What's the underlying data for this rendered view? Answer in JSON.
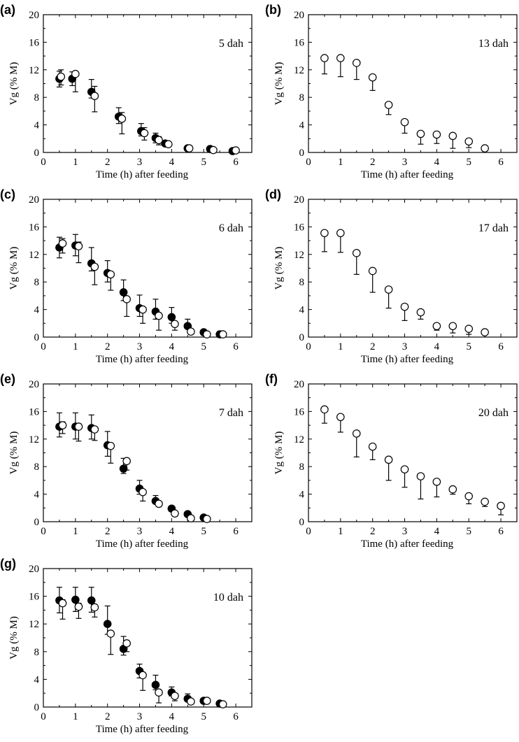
{
  "figure": {
    "xlabel": "Time (h) after feeding",
    "ylabel": "Vg (% M)"
  },
  "chart_data": [
    {
      "type": "scatter",
      "panel": "(a)",
      "annotation": "5 dah",
      "xlim": [
        0,
        6.5
      ],
      "ylim": [
        0,
        20
      ],
      "xticks": [
        "0",
        "1",
        "2",
        "3",
        "4",
        "5",
        "6"
      ],
      "yticks": [
        "0",
        "4",
        "8",
        "12",
        "16",
        "20"
      ],
      "series": [
        {
          "marker": "filled",
          "points": [
            {
              "x": 0.5,
              "y": 10.7,
              "lo": 9.5,
              "hi": 11.8
            },
            {
              "x": 0.9,
              "y": 10.7,
              "lo": 9.7,
              "hi": 11.7
            },
            {
              "x": 1.5,
              "y": 8.8,
              "lo": 7.9,
              "hi": 10.6
            },
            {
              "x": 2.35,
              "y": 5.2,
              "lo": 4.2,
              "hi": 6.5
            },
            {
              "x": 3.05,
              "y": 3.1,
              "lo": 2.4,
              "hi": 4.2
            },
            {
              "x": 3.5,
              "y": 2.1,
              "lo": 1.4,
              "hi": 2.8
            },
            {
              "x": 3.8,
              "y": 1.3,
              "lo": 1.0,
              "hi": 1.6
            },
            {
              "x": 4.5,
              "y": 0.6,
              "lo": 0.4,
              "hi": 0.8
            },
            {
              "x": 5.2,
              "y": 0.5,
              "lo": 0.3,
              "hi": 0.7
            },
            {
              "x": 5.9,
              "y": 0.2,
              "lo": 0.1,
              "hi": 0.3
            }
          ]
        },
        {
          "marker": "open",
          "points": [
            {
              "x": 0.55,
              "y": 11.0,
              "lo": 9.8,
              "hi": 12.0
            },
            {
              "x": 1.0,
              "y": 11.4,
              "lo": 8.8,
              "hi": 11.6
            },
            {
              "x": 1.6,
              "y": 8.2,
              "lo": 5.9,
              "hi": 9.6
            },
            {
              "x": 2.45,
              "y": 4.9,
              "lo": 2.7,
              "hi": 5.8
            },
            {
              "x": 3.15,
              "y": 2.8,
              "lo": 1.8,
              "hi": 3.6
            },
            {
              "x": 3.6,
              "y": 1.8,
              "lo": 1.1,
              "hi": 2.3
            },
            {
              "x": 3.9,
              "y": 1.2,
              "lo": 0.9,
              "hi": 1.5
            },
            {
              "x": 4.55,
              "y": 0.6,
              "lo": 0.4,
              "hi": 0.8
            },
            {
              "x": 5.3,
              "y": 0.35,
              "lo": 0.2,
              "hi": 0.5
            },
            {
              "x": 6.0,
              "y": 0.3,
              "lo": 0.2,
              "hi": 0.4
            }
          ]
        }
      ]
    },
    {
      "type": "scatter",
      "panel": "(b)",
      "annotation": "13 dah",
      "xlim": [
        0,
        6.5
      ],
      "ylim": [
        0,
        20
      ],
      "xticks": [
        "0",
        "1",
        "2",
        "3",
        "4",
        "5",
        "6"
      ],
      "yticks": [
        "0",
        "4",
        "8",
        "12",
        "16",
        "20"
      ],
      "series": [
        {
          "marker": "open",
          "points": [
            {
              "x": 0.5,
              "y": 13.7,
              "lo": 11.4,
              "hi": 13.7
            },
            {
              "x": 1.0,
              "y": 13.7,
              "lo": 11.0,
              "hi": 13.7
            },
            {
              "x": 1.5,
              "y": 13.0,
              "lo": 10.6,
              "hi": 13.0
            },
            {
              "x": 2.0,
              "y": 10.9,
              "lo": 9.0,
              "hi": 10.9
            },
            {
              "x": 2.5,
              "y": 6.9,
              "lo": 5.5,
              "hi": 6.9
            },
            {
              "x": 3.0,
              "y": 4.4,
              "lo": 2.8,
              "hi": 4.4
            },
            {
              "x": 3.5,
              "y": 2.7,
              "lo": 1.2,
              "hi": 2.7
            },
            {
              "x": 4.0,
              "y": 2.6,
              "lo": 1.3,
              "hi": 2.6
            },
            {
              "x": 4.5,
              "y": 2.4,
              "lo": 0.6,
              "hi": 2.4
            },
            {
              "x": 5.0,
              "y": 1.6,
              "lo": 0.7,
              "hi": 1.6
            },
            {
              "x": 5.5,
              "y": 0.6,
              "lo": 0.6,
              "hi": 0.6
            }
          ]
        }
      ]
    },
    {
      "type": "scatter",
      "panel": "(c)",
      "annotation": "6 dah",
      "xlim": [
        0,
        6.5
      ],
      "ylim": [
        0,
        20
      ],
      "xticks": [
        "0",
        "1",
        "2",
        "3",
        "4",
        "5",
        "6"
      ],
      "yticks": [
        "0",
        "4",
        "8",
        "12",
        "16",
        "20"
      ],
      "series": [
        {
          "marker": "filled",
          "points": [
            {
              "x": 0.5,
              "y": 13.0,
              "lo": 11.5,
              "hi": 14.5
            },
            {
              "x": 1.0,
              "y": 13.3,
              "lo": 11.8,
              "hi": 14.9
            },
            {
              "x": 1.5,
              "y": 10.7,
              "lo": 9.6,
              "hi": 13.0
            },
            {
              "x": 2.0,
              "y": 9.3,
              "lo": 8.0,
              "hi": 11.1
            },
            {
              "x": 2.5,
              "y": 6.5,
              "lo": 5.3,
              "hi": 8.3
            },
            {
              "x": 3.0,
              "y": 4.2,
              "lo": 3.0,
              "hi": 6.1
            },
            {
              "x": 3.5,
              "y": 3.7,
              "lo": 2.6,
              "hi": 5.5
            },
            {
              "x": 4.0,
              "y": 2.9,
              "lo": 2.0,
              "hi": 4.3
            },
            {
              "x": 4.5,
              "y": 1.6,
              "lo": 1.2,
              "hi": 2.6
            },
            {
              "x": 5.0,
              "y": 0.7,
              "lo": 0.5,
              "hi": 0.9
            },
            {
              "x": 5.5,
              "y": 0.4,
              "lo": 0.3,
              "hi": 0.5
            }
          ]
        },
        {
          "marker": "open",
          "points": [
            {
              "x": 0.6,
              "y": 13.6,
              "lo": 12.2,
              "hi": 14.3
            },
            {
              "x": 1.1,
              "y": 13.2,
              "lo": 10.8,
              "hi": 13.8
            },
            {
              "x": 1.6,
              "y": 10.2,
              "lo": 7.6,
              "hi": 10.6
            },
            {
              "x": 2.1,
              "y": 9.1,
              "lo": 6.8,
              "hi": 9.4
            },
            {
              "x": 2.6,
              "y": 5.5,
              "lo": 3.0,
              "hi": 5.8
            },
            {
              "x": 3.1,
              "y": 4.0,
              "lo": 2.0,
              "hi": 4.3
            },
            {
              "x": 3.6,
              "y": 3.1,
              "lo": 1.0,
              "hi": 3.5
            },
            {
              "x": 4.1,
              "y": 1.9,
              "lo": 1.0,
              "hi": 2.2
            },
            {
              "x": 4.6,
              "y": 0.8,
              "lo": 0.4,
              "hi": 1.2
            },
            {
              "x": 5.1,
              "y": 0.4,
              "lo": 0.3,
              "hi": 0.6
            },
            {
              "x": 5.6,
              "y": 0.4,
              "lo": 0.3,
              "hi": 0.5
            }
          ]
        }
      ]
    },
    {
      "type": "scatter",
      "panel": "(d)",
      "annotation": "17 dah",
      "xlim": [
        0,
        6.5
      ],
      "ylim": [
        0,
        20
      ],
      "xticks": [
        "0",
        "1",
        "2",
        "3",
        "4",
        "5",
        "6"
      ],
      "yticks": [
        "0",
        "4",
        "8",
        "12",
        "16",
        "20"
      ],
      "series": [
        {
          "marker": "open",
          "points": [
            {
              "x": 0.5,
              "y": 15.1,
              "lo": 12.4,
              "hi": 15.1
            },
            {
              "x": 1.0,
              "y": 15.1,
              "lo": 12.3,
              "hi": 15.1
            },
            {
              "x": 1.5,
              "y": 12.2,
              "lo": 9.1,
              "hi": 12.2
            },
            {
              "x": 2.0,
              "y": 9.6,
              "lo": 6.5,
              "hi": 9.6
            },
            {
              "x": 2.5,
              "y": 6.9,
              "lo": 4.2,
              "hi": 6.9
            },
            {
              "x": 3.0,
              "y": 4.4,
              "lo": 2.4,
              "hi": 4.4
            },
            {
              "x": 3.5,
              "y": 3.6,
              "lo": 2.6,
              "hi": 3.6
            },
            {
              "x": 4.0,
              "y": 1.6,
              "lo": 1.0,
              "hi": 1.6
            },
            {
              "x": 4.5,
              "y": 1.6,
              "lo": 0.6,
              "hi": 1.6
            },
            {
              "x": 5.0,
              "y": 1.2,
              "lo": 0.4,
              "hi": 1.2
            },
            {
              "x": 5.5,
              "y": 0.7,
              "lo": 0.5,
              "hi": 0.7
            }
          ]
        }
      ]
    },
    {
      "type": "scatter",
      "panel": "(e)",
      "annotation": "7 dah",
      "xlim": [
        0,
        6.5
      ],
      "ylim": [
        0,
        20
      ],
      "xticks": [
        "0",
        "1",
        "2",
        "3",
        "4",
        "5",
        "6"
      ],
      "yticks": [
        "0",
        "4",
        "8",
        "12",
        "16",
        "20"
      ],
      "series": [
        {
          "marker": "filled",
          "points": [
            {
              "x": 0.5,
              "y": 13.8,
              "lo": 12.3,
              "hi": 15.8
            },
            {
              "x": 1.0,
              "y": 13.8,
              "lo": 12.0,
              "hi": 15.8
            },
            {
              "x": 1.5,
              "y": 13.6,
              "lo": 12.0,
              "hi": 15.5
            },
            {
              "x": 2.0,
              "y": 11.1,
              "lo": 9.5,
              "hi": 13.1
            },
            {
              "x": 2.5,
              "y": 7.7,
              "lo": 7.0,
              "hi": 9.2
            },
            {
              "x": 3.0,
              "y": 4.8,
              "lo": 4.0,
              "hi": 6.0
            },
            {
              "x": 3.5,
              "y": 3.0,
              "lo": 2.6,
              "hi": 3.8
            },
            {
              "x": 4.0,
              "y": 1.9,
              "lo": 1.5,
              "hi": 2.2
            },
            {
              "x": 4.5,
              "y": 1.1,
              "lo": 0.8,
              "hi": 1.4
            },
            {
              "x": 5.0,
              "y": 0.6,
              "lo": 0.4,
              "hi": 0.8
            }
          ]
        },
        {
          "marker": "open",
          "points": [
            {
              "x": 0.6,
              "y": 14.0,
              "lo": 12.8,
              "hi": 14.5
            },
            {
              "x": 1.1,
              "y": 13.8,
              "lo": 11.7,
              "hi": 14.2
            },
            {
              "x": 1.6,
              "y": 13.4,
              "lo": 11.8,
              "hi": 13.8
            },
            {
              "x": 2.1,
              "y": 11.0,
              "lo": 8.5,
              "hi": 11.4
            },
            {
              "x": 2.6,
              "y": 8.8,
              "lo": 7.5,
              "hi": 9.2
            },
            {
              "x": 3.1,
              "y": 4.3,
              "lo": 3.0,
              "hi": 4.6
            },
            {
              "x": 3.6,
              "y": 2.6,
              "lo": 2.2,
              "hi": 3.0
            },
            {
              "x": 4.1,
              "y": 1.2,
              "lo": 0.8,
              "hi": 1.5
            },
            {
              "x": 4.6,
              "y": 0.5,
              "lo": 0.4,
              "hi": 0.7
            },
            {
              "x": 5.1,
              "y": 0.4,
              "lo": 0.3,
              "hi": 0.5
            }
          ]
        }
      ]
    },
    {
      "type": "scatter",
      "panel": "(f)",
      "annotation": "20 dah",
      "xlim": [
        0,
        6.5
      ],
      "ylim": [
        0,
        20
      ],
      "xticks": [
        "0",
        "1",
        "2",
        "3",
        "4",
        "5",
        "6"
      ],
      "yticks": [
        "0",
        "4",
        "8",
        "12",
        "16",
        "20"
      ],
      "series": [
        {
          "marker": "open",
          "points": [
            {
              "x": 0.5,
              "y": 16.3,
              "lo": 14.3,
              "hi": 16.3
            },
            {
              "x": 1.0,
              "y": 15.2,
              "lo": 13.0,
              "hi": 15.2
            },
            {
              "x": 1.5,
              "y": 12.8,
              "lo": 9.4,
              "hi": 12.8
            },
            {
              "x": 2.0,
              "y": 10.9,
              "lo": 9.0,
              "hi": 10.9
            },
            {
              "x": 2.5,
              "y": 9.0,
              "lo": 6.0,
              "hi": 9.0
            },
            {
              "x": 3.0,
              "y": 7.6,
              "lo": 5.0,
              "hi": 7.6
            },
            {
              "x": 3.5,
              "y": 6.6,
              "lo": 3.3,
              "hi": 6.6
            },
            {
              "x": 4.0,
              "y": 5.8,
              "lo": 3.6,
              "hi": 5.8
            },
            {
              "x": 4.5,
              "y": 4.7,
              "lo": 4.0,
              "hi": 4.7
            },
            {
              "x": 5.0,
              "y": 3.7,
              "lo": 2.6,
              "hi": 3.7
            },
            {
              "x": 5.5,
              "y": 2.9,
              "lo": 2.2,
              "hi": 2.9
            },
            {
              "x": 6.0,
              "y": 2.3,
              "lo": 1.0,
              "hi": 2.3
            }
          ]
        }
      ]
    },
    {
      "type": "scatter",
      "panel": "(g)",
      "annotation": "10 dah",
      "xlim": [
        0,
        6.5
      ],
      "ylim": [
        0,
        20
      ],
      "xticks": [
        "0",
        "1",
        "2",
        "3",
        "4",
        "5",
        "6"
      ],
      "yticks": [
        "0",
        "4",
        "8",
        "12",
        "16",
        "20"
      ],
      "series": [
        {
          "marker": "filled",
          "points": [
            {
              "x": 0.5,
              "y": 15.4,
              "lo": 13.6,
              "hi": 17.3
            },
            {
              "x": 1.0,
              "y": 15.5,
              "lo": 13.8,
              "hi": 17.3
            },
            {
              "x": 1.5,
              "y": 15.4,
              "lo": 13.7,
              "hi": 17.3
            },
            {
              "x": 2.0,
              "y": 12.0,
              "lo": 10.5,
              "hi": 14.6
            },
            {
              "x": 2.5,
              "y": 8.4,
              "lo": 7.5,
              "hi": 10.2
            },
            {
              "x": 3.0,
              "y": 5.2,
              "lo": 4.2,
              "hi": 6.2
            },
            {
              "x": 3.5,
              "y": 3.2,
              "lo": 2.5,
              "hi": 4.6
            },
            {
              "x": 4.0,
              "y": 2.1,
              "lo": 1.6,
              "hi": 2.9
            },
            {
              "x": 4.5,
              "y": 1.2,
              "lo": 0.8,
              "hi": 1.9
            },
            {
              "x": 5.0,
              "y": 0.9,
              "lo": 0.6,
              "hi": 1.1
            },
            {
              "x": 5.5,
              "y": 0.5,
              "lo": 0.4,
              "hi": 0.7
            }
          ]
        },
        {
          "marker": "open",
          "points": [
            {
              "x": 0.6,
              "y": 15.0,
              "lo": 12.7,
              "hi": 15.5
            },
            {
              "x": 1.1,
              "y": 14.5,
              "lo": 12.8,
              "hi": 15.0
            },
            {
              "x": 1.6,
              "y": 14.4,
              "lo": 13.0,
              "hi": 14.8
            },
            {
              "x": 2.1,
              "y": 10.6,
              "lo": 7.6,
              "hi": 11.0
            },
            {
              "x": 2.6,
              "y": 9.2,
              "lo": 8.0,
              "hi": 9.6
            },
            {
              "x": 3.1,
              "y": 4.6,
              "lo": 2.4,
              "hi": 5.0
            },
            {
              "x": 3.6,
              "y": 2.1,
              "lo": 0.6,
              "hi": 2.5
            },
            {
              "x": 4.1,
              "y": 1.6,
              "lo": 0.9,
              "hi": 2.0
            },
            {
              "x": 4.6,
              "y": 0.8,
              "lo": 0.4,
              "hi": 1.1
            },
            {
              "x": 5.1,
              "y": 0.9,
              "lo": 0.6,
              "hi": 1.1
            },
            {
              "x": 5.6,
              "y": 0.4,
              "lo": 0.3,
              "hi": 0.5
            }
          ]
        }
      ]
    }
  ]
}
